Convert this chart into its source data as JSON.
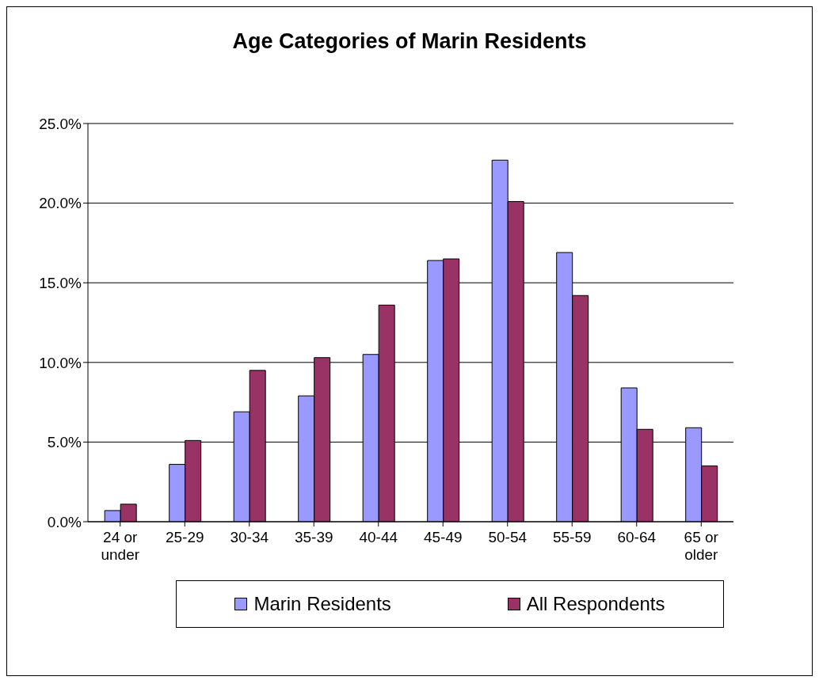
{
  "chart_data": {
    "type": "bar",
    "title": "Age Categories of Marin Residents",
    "categories": [
      "24 or under",
      "25-29",
      "30-34",
      "35-39",
      "40-44",
      "45-49",
      "50-54",
      "55-59",
      "60-64",
      "65 or older"
    ],
    "series": [
      {
        "name": "Marin Residents",
        "color": "#9999ff",
        "values": [
          0.7,
          3.6,
          6.9,
          7.9,
          10.5,
          16.4,
          22.7,
          16.9,
          8.4,
          5.9
        ]
      },
      {
        "name": "All Respondents",
        "color": "#993366",
        "values": [
          1.1,
          5.1,
          9.5,
          10.3,
          13.6,
          16.5,
          20.1,
          14.2,
          5.8,
          3.5
        ]
      }
    ],
    "ylim": [
      0,
      25
    ],
    "yticks": [
      {
        "value": 0,
        "label": "0.0%"
      },
      {
        "value": 5,
        "label": "5.0%"
      },
      {
        "value": 10,
        "label": "10.0%"
      },
      {
        "value": 15,
        "label": "15.0%"
      },
      {
        "value": 20,
        "label": "20.0%"
      },
      {
        "value": 25,
        "label": "25.0%"
      }
    ],
    "grid": "y",
    "legend": "bottom"
  }
}
